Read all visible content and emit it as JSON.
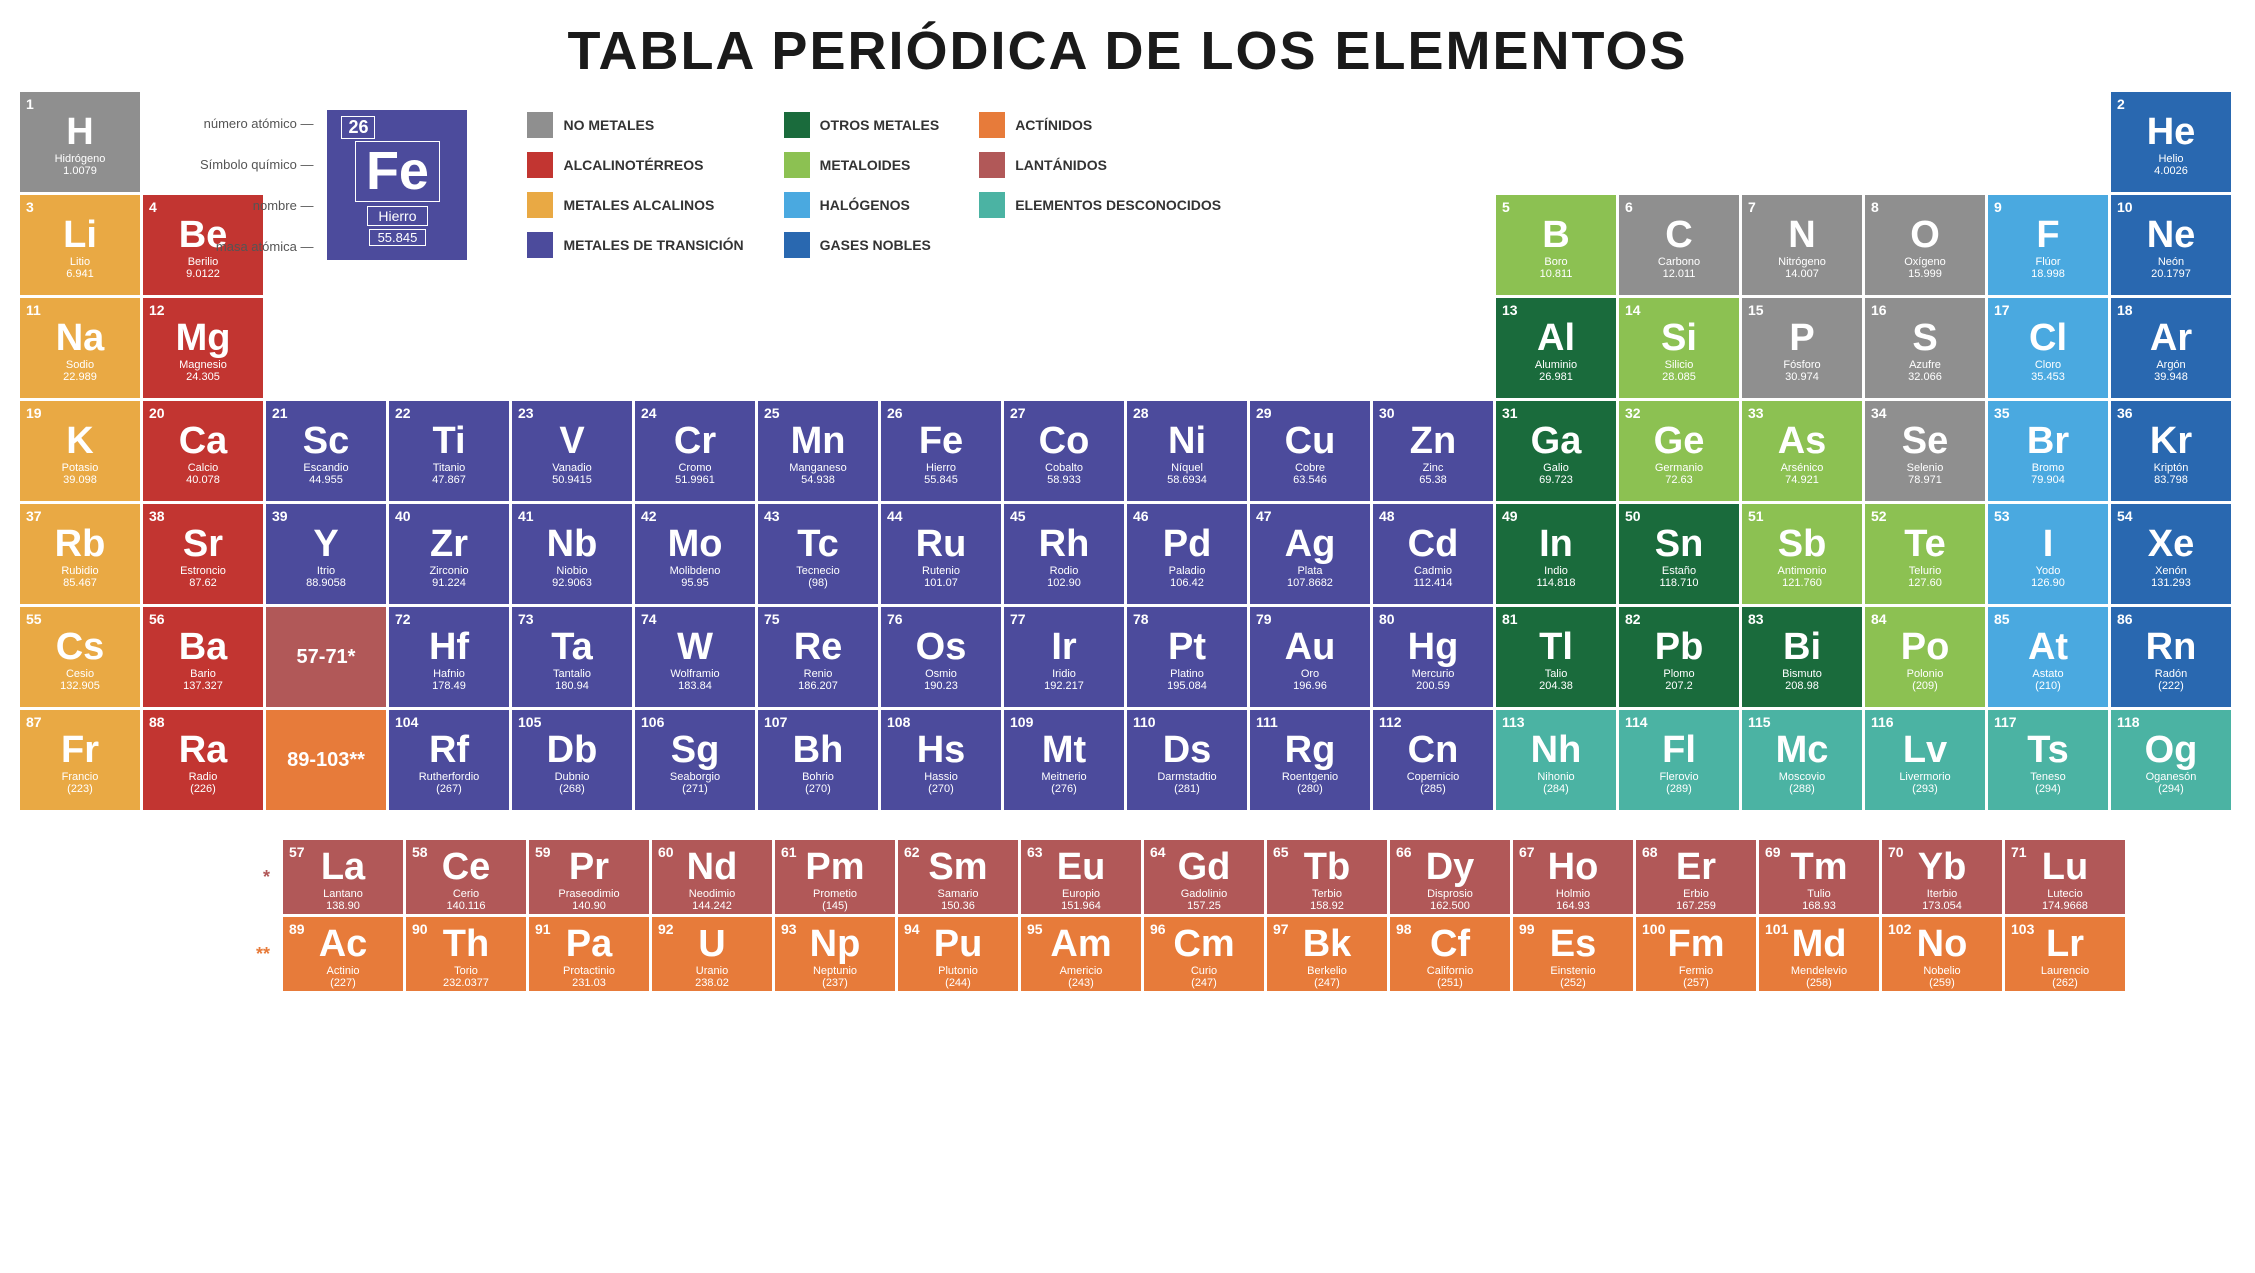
{
  "title": "TABLA PERIÓDICA DE LOS ELEMENTOS",
  "categories": {
    "nonmetal": {
      "color": "#8f8f8f",
      "label": "NO METALES"
    },
    "alkaline": {
      "color": "#c23531",
      "label": "ALCALINOTÉRREOS"
    },
    "alkali": {
      "color": "#e9a944",
      "label": "METALES ALCALINOS"
    },
    "transition": {
      "color": "#4c4b9c",
      "label": "METALES DE TRANSICIÓN"
    },
    "othermetal": {
      "color": "#1a6b3c",
      "label": "OTROS METALES"
    },
    "metalloid": {
      "color": "#8cc152",
      "label": "METALOIDES"
    },
    "halogen": {
      "color": "#4aa9e0",
      "label": "HALÓGENOS"
    },
    "noblegas": {
      "color": "#2968b0",
      "label": "GASES NOBLES"
    },
    "actinide": {
      "color": "#e77b3a",
      "label": "ACTÍNIDOS"
    },
    "lanthanide": {
      "color": "#b15858",
      "label": "LANTÁNIDOS"
    },
    "unknown": {
      "color": "#4bb3a3",
      "label": "ELEMENTOS DESCONOCIDOS"
    }
  },
  "legend_cols": [
    [
      "nonmetal",
      "alkaline",
      "alkali",
      "transition"
    ],
    [
      "othermetal",
      "metalloid",
      "halogen",
      "noblegas"
    ],
    [
      "actinide",
      "lanthanide",
      "unknown"
    ]
  ],
  "key": {
    "labels": {
      "num": "número atómico",
      "sym": "Símbolo químico",
      "name": "nombre",
      "mass": "masa atómica"
    },
    "example": {
      "num": "26",
      "sym": "Fe",
      "name": "Hierro",
      "mass": "55.845"
    }
  },
  "placeholders": {
    "lan": "57-71*",
    "act": "89-103**"
  },
  "series_labels": {
    "lan": "*",
    "act": "**"
  },
  "elements": [
    {
      "n": 1,
      "s": "H",
      "name": "Hidrógeno",
      "m": "1.0079",
      "c": "nonmetal",
      "r": 1,
      "col": 1
    },
    {
      "n": 2,
      "s": "He",
      "name": "Helio",
      "m": "4.0026",
      "c": "noblegas",
      "r": 1,
      "col": 18
    },
    {
      "n": 3,
      "s": "Li",
      "name": "Litio",
      "m": "6.941",
      "c": "alkali",
      "r": 2,
      "col": 1
    },
    {
      "n": 4,
      "s": "Be",
      "name": "Berilio",
      "m": "9.0122",
      "c": "alkaline",
      "r": 2,
      "col": 2
    },
    {
      "n": 5,
      "s": "B",
      "name": "Boro",
      "m": "10.811",
      "c": "metalloid",
      "r": 2,
      "col": 13
    },
    {
      "n": 6,
      "s": "C",
      "name": "Carbono",
      "m": "12.011",
      "c": "nonmetal",
      "r": 2,
      "col": 14
    },
    {
      "n": 7,
      "s": "N",
      "name": "Nitrógeno",
      "m": "14.007",
      "c": "nonmetal",
      "r": 2,
      "col": 15
    },
    {
      "n": 8,
      "s": "O",
      "name": "Oxígeno",
      "m": "15.999",
      "c": "nonmetal",
      "r": 2,
      "col": 16
    },
    {
      "n": 9,
      "s": "F",
      "name": "Flúor",
      "m": "18.998",
      "c": "halogen",
      "r": 2,
      "col": 17
    },
    {
      "n": 10,
      "s": "Ne",
      "name": "Neón",
      "m": "20.1797",
      "c": "noblegas",
      "r": 2,
      "col": 18
    },
    {
      "n": 11,
      "s": "Na",
      "name": "Sodio",
      "m": "22.989",
      "c": "alkali",
      "r": 3,
      "col": 1
    },
    {
      "n": 12,
      "s": "Mg",
      "name": "Magnesio",
      "m": "24.305",
      "c": "alkaline",
      "r": 3,
      "col": 2
    },
    {
      "n": 13,
      "s": "Al",
      "name": "Aluminio",
      "m": "26.981",
      "c": "othermetal",
      "r": 3,
      "col": 13
    },
    {
      "n": 14,
      "s": "Si",
      "name": "Silicio",
      "m": "28.085",
      "c": "metalloid",
      "r": 3,
      "col": 14
    },
    {
      "n": 15,
      "s": "P",
      "name": "Fósforo",
      "m": "30.974",
      "c": "nonmetal",
      "r": 3,
      "col": 15
    },
    {
      "n": 16,
      "s": "S",
      "name": "Azufre",
      "m": "32.066",
      "c": "nonmetal",
      "r": 3,
      "col": 16
    },
    {
      "n": 17,
      "s": "Cl",
      "name": "Cloro",
      "m": "35.453",
      "c": "halogen",
      "r": 3,
      "col": 17
    },
    {
      "n": 18,
      "s": "Ar",
      "name": "Argón",
      "m": "39.948",
      "c": "noblegas",
      "r": 3,
      "col": 18
    },
    {
      "n": 19,
      "s": "K",
      "name": "Potasio",
      "m": "39.098",
      "c": "alkali",
      "r": 4,
      "col": 1
    },
    {
      "n": 20,
      "s": "Ca",
      "name": "Calcio",
      "m": "40.078",
      "c": "alkaline",
      "r": 4,
      "col": 2
    },
    {
      "n": 21,
      "s": "Sc",
      "name": "Escandio",
      "m": "44.955",
      "c": "transition",
      "r": 4,
      "col": 3
    },
    {
      "n": 22,
      "s": "Ti",
      "name": "Titanio",
      "m": "47.867",
      "c": "transition",
      "r": 4,
      "col": 4
    },
    {
      "n": 23,
      "s": "V",
      "name": "Vanadio",
      "m": "50.9415",
      "c": "transition",
      "r": 4,
      "col": 5
    },
    {
      "n": 24,
      "s": "Cr",
      "name": "Cromo",
      "m": "51.9961",
      "c": "transition",
      "r": 4,
      "col": 6
    },
    {
      "n": 25,
      "s": "Mn",
      "name": "Manganeso",
      "m": "54.938",
      "c": "transition",
      "r": 4,
      "col": 7
    },
    {
      "n": 26,
      "s": "Fe",
      "name": "Hierro",
      "m": "55.845",
      "c": "transition",
      "r": 4,
      "col": 8
    },
    {
      "n": 27,
      "s": "Co",
      "name": "Cobalto",
      "m": "58.933",
      "c": "transition",
      "r": 4,
      "col": 9
    },
    {
      "n": 28,
      "s": "Ni",
      "name": "Níquel",
      "m": "58.6934",
      "c": "transition",
      "r": 4,
      "col": 10
    },
    {
      "n": 29,
      "s": "Cu",
      "name": "Cobre",
      "m": "63.546",
      "c": "transition",
      "r": 4,
      "col": 11
    },
    {
      "n": 30,
      "s": "Zn",
      "name": "Zinc",
      "m": "65.38",
      "c": "transition",
      "r": 4,
      "col": 12
    },
    {
      "n": 31,
      "s": "Ga",
      "name": "Galio",
      "m": "69.723",
      "c": "othermetal",
      "r": 4,
      "col": 13
    },
    {
      "n": 32,
      "s": "Ge",
      "name": "Germanio",
      "m": "72.63",
      "c": "metalloid",
      "r": 4,
      "col": 14
    },
    {
      "n": 33,
      "s": "As",
      "name": "Arsénico",
      "m": "74.921",
      "c": "metalloid",
      "r": 4,
      "col": 15
    },
    {
      "n": 34,
      "s": "Se",
      "name": "Selenio",
      "m": "78.971",
      "c": "nonmetal",
      "r": 4,
      "col": 16
    },
    {
      "n": 35,
      "s": "Br",
      "name": "Bromo",
      "m": "79.904",
      "c": "halogen",
      "r": 4,
      "col": 17
    },
    {
      "n": 36,
      "s": "Kr",
      "name": "Kriptón",
      "m": "83.798",
      "c": "noblegas",
      "r": 4,
      "col": 18
    },
    {
      "n": 37,
      "s": "Rb",
      "name": "Rubidio",
      "m": "85.467",
      "c": "alkali",
      "r": 5,
      "col": 1
    },
    {
      "n": 38,
      "s": "Sr",
      "name": "Estroncio",
      "m": "87.62",
      "c": "alkaline",
      "r": 5,
      "col": 2
    },
    {
      "n": 39,
      "s": "Y",
      "name": "Itrio",
      "m": "88.9058",
      "c": "transition",
      "r": 5,
      "col": 3
    },
    {
      "n": 40,
      "s": "Zr",
      "name": "Zirconio",
      "m": "91.224",
      "c": "transition",
      "r": 5,
      "col": 4
    },
    {
      "n": 41,
      "s": "Nb",
      "name": "Niobio",
      "m": "92.9063",
      "c": "transition",
      "r": 5,
      "col": 5
    },
    {
      "n": 42,
      "s": "Mo",
      "name": "Molibdeno",
      "m": "95.95",
      "c": "transition",
      "r": 5,
      "col": 6
    },
    {
      "n": 43,
      "s": "Tc",
      "name": "Tecnecio",
      "m": "(98)",
      "c": "transition",
      "r": 5,
      "col": 7
    },
    {
      "n": 44,
      "s": "Ru",
      "name": "Rutenio",
      "m": "101.07",
      "c": "transition",
      "r": 5,
      "col": 8
    },
    {
      "n": 45,
      "s": "Rh",
      "name": "Rodio",
      "m": "102.90",
      "c": "transition",
      "r": 5,
      "col": 9
    },
    {
      "n": 46,
      "s": "Pd",
      "name": "Paladio",
      "m": "106.42",
      "c": "transition",
      "r": 5,
      "col": 10
    },
    {
      "n": 47,
      "s": "Ag",
      "name": "Plata",
      "m": "107.8682",
      "c": "transition",
      "r": 5,
      "col": 11
    },
    {
      "n": 48,
      "s": "Cd",
      "name": "Cadmio",
      "m": "112.414",
      "c": "transition",
      "r": 5,
      "col": 12
    },
    {
      "n": 49,
      "s": "In",
      "name": "Indio",
      "m": "114.818",
      "c": "othermetal",
      "r": 5,
      "col": 13
    },
    {
      "n": 50,
      "s": "Sn",
      "name": "Estaño",
      "m": "118.710",
      "c": "othermetal",
      "r": 5,
      "col": 14
    },
    {
      "n": 51,
      "s": "Sb",
      "name": "Antimonio",
      "m": "121.760",
      "c": "metalloid",
      "r": 5,
      "col": 15
    },
    {
      "n": 52,
      "s": "Te",
      "name": "Telurio",
      "m": "127.60",
      "c": "metalloid",
      "r": 5,
      "col": 16
    },
    {
      "n": 53,
      "s": "I",
      "name": "Yodo",
      "m": "126.90",
      "c": "halogen",
      "r": 5,
      "col": 17
    },
    {
      "n": 54,
      "s": "Xe",
      "name": "Xenón",
      "m": "131.293",
      "c": "noblegas",
      "r": 5,
      "col": 18
    },
    {
      "n": 55,
      "s": "Cs",
      "name": "Cesio",
      "m": "132.905",
      "c": "alkali",
      "r": 6,
      "col": 1
    },
    {
      "n": 56,
      "s": "Ba",
      "name": "Bario",
      "m": "137.327",
      "c": "alkaline",
      "r": 6,
      "col": 2
    },
    {
      "n": 72,
      "s": "Hf",
      "name": "Hafnio",
      "m": "178.49",
      "c": "transition",
      "r": 6,
      "col": 4
    },
    {
      "n": 73,
      "s": "Ta",
      "name": "Tantalio",
      "m": "180.94",
      "c": "transition",
      "r": 6,
      "col": 5
    },
    {
      "n": 74,
      "s": "W",
      "name": "Wolframio",
      "m": "183.84",
      "c": "transition",
      "r": 6,
      "col": 6
    },
    {
      "n": 75,
      "s": "Re",
      "name": "Renio",
      "m": "186.207",
      "c": "transition",
      "r": 6,
      "col": 7
    },
    {
      "n": 76,
      "s": "Os",
      "name": "Osmio",
      "m": "190.23",
      "c": "transition",
      "r": 6,
      "col": 8
    },
    {
      "n": 77,
      "s": "Ir",
      "name": "Iridio",
      "m": "192.217",
      "c": "transition",
      "r": 6,
      "col": 9
    },
    {
      "n": 78,
      "s": "Pt",
      "name": "Platino",
      "m": "195.084",
      "c": "transition",
      "r": 6,
      "col": 10
    },
    {
      "n": 79,
      "s": "Au",
      "name": "Oro",
      "m": "196.96",
      "c": "transition",
      "r": 6,
      "col": 11
    },
    {
      "n": 80,
      "s": "Hg",
      "name": "Mercurio",
      "m": "200.59",
      "c": "transition",
      "r": 6,
      "col": 12
    },
    {
      "n": 81,
      "s": "Tl",
      "name": "Talio",
      "m": "204.38",
      "c": "othermetal",
      "r": 6,
      "col": 13
    },
    {
      "n": 82,
      "s": "Pb",
      "name": "Plomo",
      "m": "207.2",
      "c": "othermetal",
      "r": 6,
      "col": 14
    },
    {
      "n": 83,
      "s": "Bi",
      "name": "Bismuto",
      "m": "208.98",
      "c": "othermetal",
      "r": 6,
      "col": 15
    },
    {
      "n": 84,
      "s": "Po",
      "name": "Polonio",
      "m": "(209)",
      "c": "metalloid",
      "r": 6,
      "col": 16
    },
    {
      "n": 85,
      "s": "At",
      "name": "Astato",
      "m": "(210)",
      "c": "halogen",
      "r": 6,
      "col": 17
    },
    {
      "n": 86,
      "s": "Rn",
      "name": "Radón",
      "m": "(222)",
      "c": "noblegas",
      "r": 6,
      "col": 18
    },
    {
      "n": 87,
      "s": "Fr",
      "name": "Francio",
      "m": "(223)",
      "c": "alkali",
      "r": 7,
      "col": 1
    },
    {
      "n": 88,
      "s": "Ra",
      "name": "Radio",
      "m": "(226)",
      "c": "alkaline",
      "r": 7,
      "col": 2
    },
    {
      "n": 104,
      "s": "Rf",
      "name": "Rutherfordio",
      "m": "(267)",
      "c": "transition",
      "r": 7,
      "col": 4
    },
    {
      "n": 105,
      "s": "Db",
      "name": "Dubnio",
      "m": "(268)",
      "c": "transition",
      "r": 7,
      "col": 5
    },
    {
      "n": 106,
      "s": "Sg",
      "name": "Seaborgio",
      "m": "(271)",
      "c": "transition",
      "r": 7,
      "col": 6
    },
    {
      "n": 107,
      "s": "Bh",
      "name": "Bohrio",
      "m": "(270)",
      "c": "transition",
      "r": 7,
      "col": 7
    },
    {
      "n": 108,
      "s": "Hs",
      "name": "Hassio",
      "m": "(270)",
      "c": "transition",
      "r": 7,
      "col": 8
    },
    {
      "n": 109,
      "s": "Mt",
      "name": "Meitnerio",
      "m": "(276)",
      "c": "transition",
      "r": 7,
      "col": 9
    },
    {
      "n": 110,
      "s": "Ds",
      "name": "Darmstadtio",
      "m": "(281)",
      "c": "transition",
      "r": 7,
      "col": 10
    },
    {
      "n": 111,
      "s": "Rg",
      "name": "Roentgenio",
      "m": "(280)",
      "c": "transition",
      "r": 7,
      "col": 11
    },
    {
      "n": 112,
      "s": "Cn",
      "name": "Copernicio",
      "m": "(285)",
      "c": "transition",
      "r": 7,
      "col": 12
    },
    {
      "n": 113,
      "s": "Nh",
      "name": "Nihonio",
      "m": "(284)",
      "c": "unknown",
      "r": 7,
      "col": 13
    },
    {
      "n": 114,
      "s": "Fl",
      "name": "Flerovio",
      "m": "(289)",
      "c": "unknown",
      "r": 7,
      "col": 14
    },
    {
      "n": 115,
      "s": "Mc",
      "name": "Moscovio",
      "m": "(288)",
      "c": "unknown",
      "r": 7,
      "col": 15
    },
    {
      "n": 116,
      "s": "Lv",
      "name": "Livermorio",
      "m": "(293)",
      "c": "unknown",
      "r": 7,
      "col": 16
    },
    {
      "n": 117,
      "s": "Ts",
      "name": "Teneso",
      "m": "(294)",
      "c": "unknown",
      "r": 7,
      "col": 17
    },
    {
      "n": 118,
      "s": "Og",
      "name": "Oganesón",
      "m": "(294)",
      "c": "unknown",
      "r": 7,
      "col": 18
    }
  ],
  "lanthanides": [
    {
      "n": 57,
      "s": "La",
      "name": "Lantano",
      "m": "138.90"
    },
    {
      "n": 58,
      "s": "Ce",
      "name": "Cerio",
      "m": "140.116"
    },
    {
      "n": 59,
      "s": "Pr",
      "name": "Praseodimio",
      "m": "140.90"
    },
    {
      "n": 60,
      "s": "Nd",
      "name": "Neodimio",
      "m": "144.242"
    },
    {
      "n": 61,
      "s": "Pm",
      "name": "Prometio",
      "m": "(145)"
    },
    {
      "n": 62,
      "s": "Sm",
      "name": "Samario",
      "m": "150.36"
    },
    {
      "n": 63,
      "s": "Eu",
      "name": "Europio",
      "m": "151.964"
    },
    {
      "n": 64,
      "s": "Gd",
      "name": "Gadolinio",
      "m": "157.25"
    },
    {
      "n": 65,
      "s": "Tb",
      "name": "Terbio",
      "m": "158.92"
    },
    {
      "n": 66,
      "s": "Dy",
      "name": "Disprosio",
      "m": "162.500"
    },
    {
      "n": 67,
      "s": "Ho",
      "name": "Holmio",
      "m": "164.93"
    },
    {
      "n": 68,
      "s": "Er",
      "name": "Erbio",
      "m": "167.259"
    },
    {
      "n": 69,
      "s": "Tm",
      "name": "Tulio",
      "m": "168.93"
    },
    {
      "n": 70,
      "s": "Yb",
      "name": "Iterbio",
      "m": "173.054"
    },
    {
      "n": 71,
      "s": "Lu",
      "name": "Lutecio",
      "m": "174.9668"
    }
  ],
  "actinides": [
    {
      "n": 89,
      "s": "Ac",
      "name": "Actinio",
      "m": "(227)"
    },
    {
      "n": 90,
      "s": "Th",
      "name": "Torio",
      "m": "232.0377"
    },
    {
      "n": 91,
      "s": "Pa",
      "name": "Protactinio",
      "m": "231.03"
    },
    {
      "n": 92,
      "s": "U",
      "name": "Uranio",
      "m": "238.02"
    },
    {
      "n": 93,
      "s": "Np",
      "name": "Neptunio",
      "m": "(237)"
    },
    {
      "n": 94,
      "s": "Pu",
      "name": "Plutonio",
      "m": "(244)"
    },
    {
      "n": 95,
      "s": "Am",
      "name": "Americio",
      "m": "(243)"
    },
    {
      "n": 96,
      "s": "Cm",
      "name": "Curio",
      "m": "(247)"
    },
    {
      "n": 97,
      "s": "Bk",
      "name": "Berkelio",
      "m": "(247)"
    },
    {
      "n": 98,
      "s": "Cf",
      "name": "Californio",
      "m": "(251)"
    },
    {
      "n": 99,
      "s": "Es",
      "name": "Einstenio",
      "m": "(252)"
    },
    {
      "n": 100,
      "s": "Fm",
      "name": "Fermio",
      "m": "(257)"
    },
    {
      "n": 101,
      "s": "Md",
      "name": "Mendelevio",
      "m": "(258)"
    },
    {
      "n": 102,
      "s": "No",
      "name": "Nobelio",
      "m": "(259)"
    },
    {
      "n": 103,
      "s": "Lr",
      "name": "Laurencio",
      "m": "(262)"
    }
  ]
}
